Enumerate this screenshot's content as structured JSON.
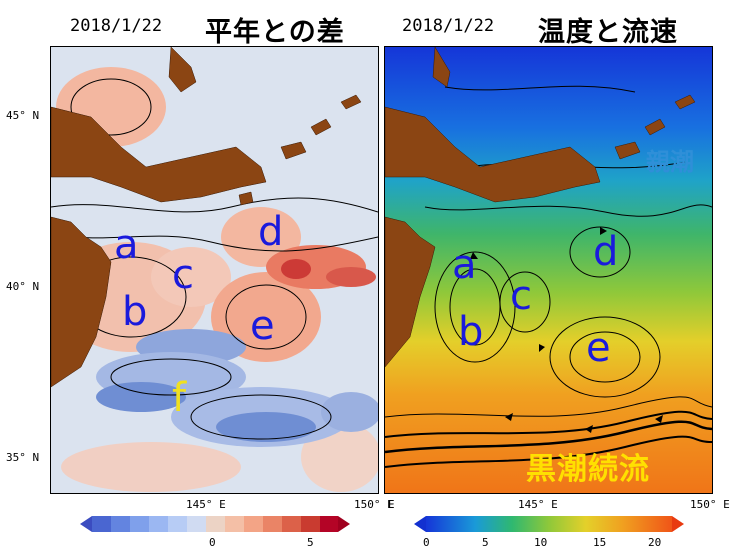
{
  "left_panel": {
    "date": "2018/1/22",
    "title": "平年との差",
    "y_ticks": [
      "45° N",
      "40° N",
      "35° N"
    ],
    "x_ticks": [
      "145° E",
      "150° E"
    ],
    "labels": [
      "a",
      "b",
      "c",
      "d",
      "e",
      "f"
    ],
    "colorbar_ticks": [
      "0",
      "5"
    ]
  },
  "right_panel": {
    "date": "2018/1/22",
    "title": "温度と流速",
    "x_ticks": [
      "E",
      "145° E",
      "150° E"
    ],
    "labels": [
      "a",
      "b",
      "c",
      "d",
      "e"
    ],
    "oyashio_label": "親潮",
    "kuroshio_label": "黒潮続流",
    "colorbar_ticks": [
      "0",
      "5",
      "10",
      "15",
      "20"
    ]
  },
  "colors": {
    "land": "#8b4513",
    "label_blue": "#1a1adc",
    "label_yellow": "#f0e020",
    "oyashio_text": "#2f8fd8",
    "kuroshio_text": "#ffe000"
  }
}
